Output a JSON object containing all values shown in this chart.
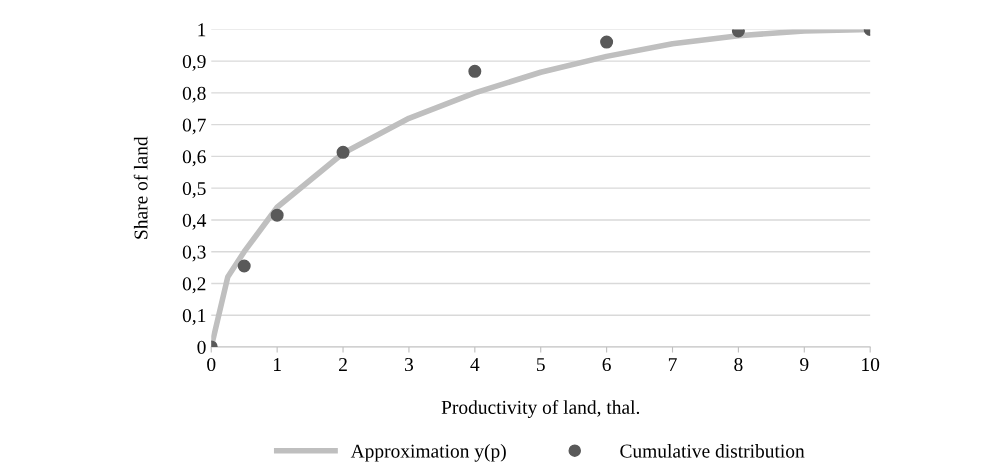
{
  "chart_data": {
    "type": "scatter",
    "xlabel": "Productivity of land, thal.",
    "ylabel": "Share of land",
    "xlim": [
      0,
      10
    ],
    "xticks": [
      0,
      1,
      2,
      3,
      4,
      5,
      6,
      7,
      8,
      9,
      10
    ],
    "ylim": [
      0,
      1
    ],
    "yticks": [
      0,
      {
        "value": 0.1,
        "label": "0,1"
      },
      {
        "value": 0.2,
        "label": "0,2"
      },
      {
        "value": 0.3,
        "label": "0,3"
      },
      {
        "value": 0.4,
        "label": "0,4"
      },
      {
        "value": 0.5,
        "label": "0,5"
      },
      {
        "value": 0.6,
        "label": "0,6"
      },
      {
        "value": 0.7,
        "label": "0,7"
      },
      {
        "value": 0.8,
        "label": "0,8"
      },
      {
        "value": 0.9,
        "label": "0,9"
      },
      1
    ],
    "grid": "y",
    "legend": "bottom",
    "series": [
      {
        "name": "Approximation y(p)",
        "type": "line",
        "color": "#bfbfbf",
        "marker": "none",
        "x": [
          0,
          0.25,
          0.5,
          1,
          2,
          3,
          4,
          5,
          6,
          7,
          8,
          9,
          10
        ],
        "values": [
          0,
          0.22,
          0.3,
          0.44,
          0.61,
          0.72,
          0.8,
          0.865,
          0.915,
          0.955,
          0.98,
          0.995,
          1.0
        ]
      },
      {
        "name": "Cumulative distribution",
        "color": "#595959",
        "marker": "circle",
        "x": [
          0,
          0.5,
          1,
          2,
          4,
          6,
          8,
          10
        ],
        "values": [
          0,
          0.255,
          0.415,
          0.613,
          0.868,
          0.96,
          0.995,
          1.0
        ]
      }
    ]
  }
}
